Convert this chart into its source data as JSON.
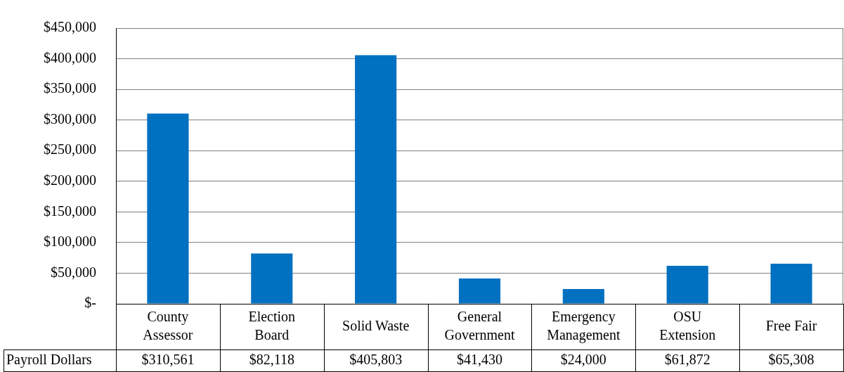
{
  "chart_data": {
    "type": "bar",
    "categories": [
      "County Assessor",
      "Election Board",
      "Solid Waste",
      "General Government",
      "Emergency Management",
      "OSU Extension",
      "Free Fair"
    ],
    "series": [
      {
        "name": "Payroll Dollars",
        "color": "#0070c0",
        "values": [
          310561,
          82118,
          405803,
          41430,
          24000,
          61872,
          65308
        ],
        "value_labels": [
          "$310,561",
          "$82,118",
          "$405,803",
          "$41,430",
          "$24,000",
          "$61,872",
          "$65,308"
        ]
      }
    ],
    "ylim": [
      0,
      450000
    ],
    "yticks": [
      {
        "value": 0,
        "label": "$-"
      },
      {
        "value": 50000,
        "label": "$50,000"
      },
      {
        "value": 100000,
        "label": "$100,000"
      },
      {
        "value": 150000,
        "label": "$150,000"
      },
      {
        "value": 200000,
        "label": "$200,000"
      },
      {
        "value": 250000,
        "label": "$250,000"
      },
      {
        "value": 300000,
        "label": "$300,000"
      },
      {
        "value": 350000,
        "label": "$350,000"
      },
      {
        "value": 400000,
        "label": "$400,000"
      },
      {
        "value": 450000,
        "label": "$450,000"
      }
    ],
    "grid": "y",
    "legend": false
  }
}
